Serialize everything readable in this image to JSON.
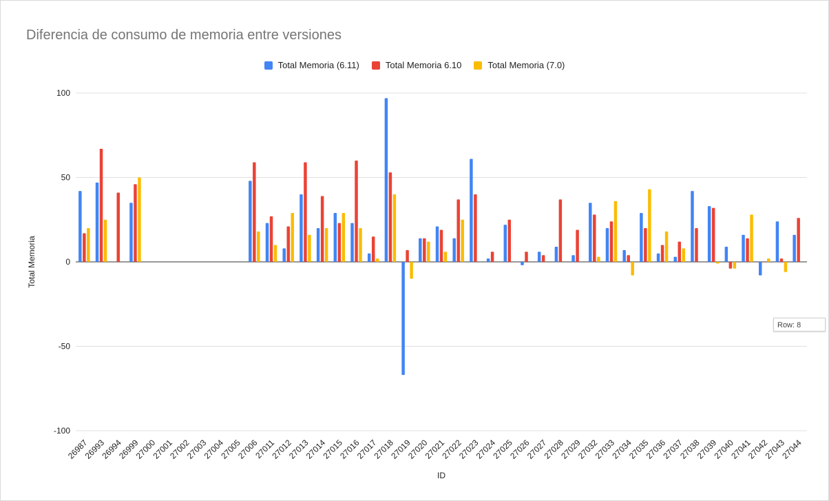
{
  "chart_data": {
    "type": "bar",
    "title": "Diferencia de consumo de memoria entre versiones",
    "xlabel": "ID",
    "ylabel": "Total Memoria",
    "ylim": [
      -100,
      100
    ],
    "yticks": [
      -100,
      -50,
      0,
      50,
      100
    ],
    "grid": true,
    "legend_position": "top",
    "categories": [
      "26987",
      "26993",
      "26994",
      "26999",
      "27000",
      "27001",
      "27002",
      "27003",
      "27004",
      "27005",
      "27006",
      "27011",
      "27012",
      "27013",
      "27014",
      "27015",
      "27016",
      "27017",
      "27018",
      "27019",
      "27020",
      "27021",
      "27022",
      "27023",
      "27024",
      "27025",
      "27026",
      "27027",
      "27028",
      "27029",
      "27032",
      "27033",
      "27034",
      "27035",
      "27036",
      "27037",
      "27038",
      "27039",
      "27040",
      "27041",
      "27042",
      "27043",
      "27044"
    ],
    "series": [
      {
        "name": "Total Memoria (6.11)",
        "color": "#4285f4",
        "values": [
          42,
          47,
          null,
          35,
          null,
          null,
          null,
          null,
          null,
          null,
          48,
          23,
          8,
          40,
          20,
          29,
          23,
          5,
          97,
          -67,
          14,
          21,
          14,
          61,
          2,
          22,
          -2,
          6,
          9,
          4,
          35,
          20,
          7,
          29,
          5,
          3,
          42,
          33,
          9,
          16,
          -8,
          24,
          16
        ]
      },
      {
        "name": "Total Memoria 6.10",
        "color": "#ea4335",
        "values": [
          17,
          67,
          41,
          46,
          null,
          null,
          null,
          null,
          null,
          null,
          59,
          27,
          21,
          59,
          39,
          23,
          60,
          15,
          53,
          7,
          14,
          19,
          37,
          40,
          6,
          25,
          6,
          4,
          37,
          19,
          28,
          24,
          4,
          20,
          10,
          12,
          20,
          32,
          -4,
          14,
          0,
          2,
          26
        ]
      },
      {
        "name": "Total Memoria (7.0)",
        "color": "#fbbc04",
        "values": [
          20,
          25,
          null,
          50,
          null,
          null,
          null,
          null,
          null,
          null,
          18,
          10,
          29,
          16,
          20,
          29,
          20,
          2,
          40,
          -10,
          12,
          6,
          25,
          null,
          null,
          null,
          null,
          null,
          null,
          null,
          3,
          36,
          -8,
          43,
          18,
          8,
          null,
          -1,
          -4,
          28,
          2,
          -6,
          null
        ]
      }
    ]
  },
  "tooltip": {
    "text": "Row: 8"
  }
}
